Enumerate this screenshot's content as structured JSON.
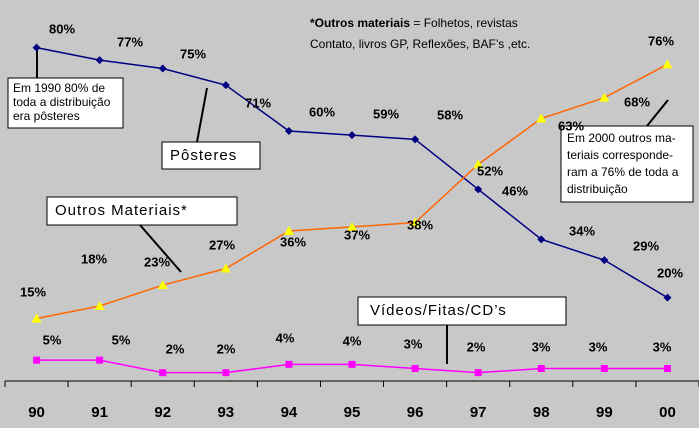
{
  "chart_data": {
    "type": "line",
    "categories": [
      "90",
      "91",
      "92",
      "93",
      "94",
      "95",
      "96",
      "97",
      "98",
      "99",
      "00"
    ],
    "series": [
      {
        "name": "Pôsteres",
        "color": "#000080",
        "marker_color": "#000080",
        "marker": "diamond",
        "values": [
          80,
          77,
          75,
          71,
          60,
          59,
          58,
          46,
          34,
          29,
          20
        ],
        "value_labels": [
          "80%",
          "77%",
          "75%",
          "71%",
          "60%",
          "59%",
          "58%",
          "46%",
          "34%",
          "29%",
          "20%"
        ]
      },
      {
        "name": "Outros Materiais*",
        "color": "#ff6600",
        "marker_color": "#ffff00",
        "marker": "triangle",
        "values": [
          15,
          18,
          23,
          27,
          36,
          37,
          38,
          52,
          63,
          68,
          76
        ],
        "value_labels": [
          "15%",
          "18%",
          "23%",
          "27%",
          "36%",
          "37%",
          "38%",
          "52%",
          "63%",
          "68%",
          "76%"
        ]
      },
      {
        "name": "Vídeos/Fitas/CD’s",
        "color": "#ff00ff",
        "marker_color": "#ff00ff",
        "marker": "square",
        "values": [
          5,
          5,
          2,
          2,
          4,
          4,
          3,
          2,
          3,
          3,
          3
        ],
        "value_labels": [
          "5%",
          "5%",
          "2%",
          "2%",
          "4%",
          "4%",
          "3%",
          "2%",
          "3%",
          "3%",
          "3%"
        ]
      }
    ],
    "ylim": [
      0,
      90
    ],
    "annotations": {
      "note_bold": "*Outros materiais",
      "note_rest": " = Folhetos, revistas",
      "note_line2": "Contato, livros GP, Reflexões, BAF’s ,etc.",
      "callout_1990": [
        "Em 1990 80% de",
        "toda a distribuição",
        "era pôsteres"
      ],
      "callout_2000": [
        "Em 2000 outros ma-",
        "teriais corresponde-",
        "ram a 76% de toda a",
        "distribuição"
      ]
    }
  }
}
